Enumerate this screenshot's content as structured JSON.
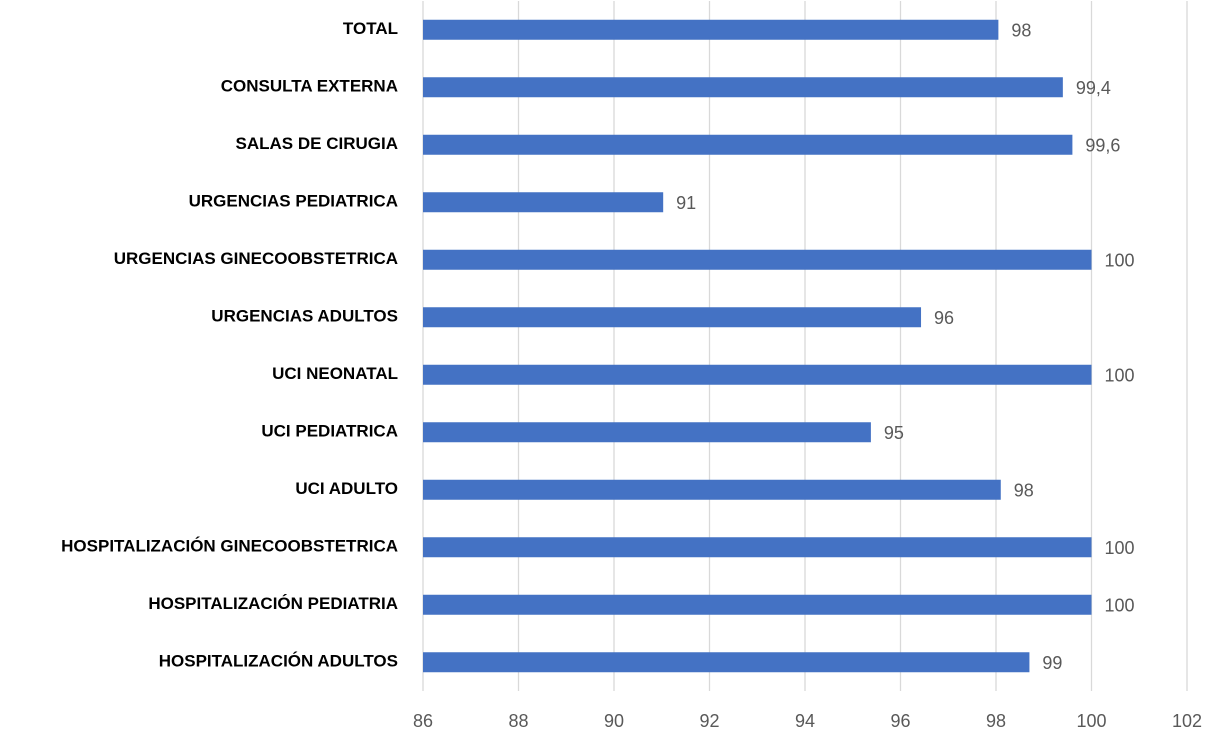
{
  "chart_data": {
    "type": "hbar",
    "categories": [
      "TOTAL",
      "CONSULTA EXTERNA",
      "SALAS DE CIRUGIA",
      "URGENCIAS PEDIATRICA",
      "URGENCIAS GINECOOBSTETRICA",
      "URGENCIAS ADULTOS",
      "UCI NEONATAL",
      "UCI PEDIATRICA",
      "UCI ADULTO",
      "HOSPITALIZACIÓN GINECOOBSTETRICA",
      "HOSPITALIZACIÓN PEDIATRIA",
      "HOSPITALIZACIÓN ADULTOS"
    ],
    "values": [
      98.05,
      99.4,
      99.6,
      91.03,
      100,
      96.43,
      100,
      95.38,
      98.1,
      100,
      100,
      98.7
    ],
    "value_labels": [
      "98",
      "99,4",
      "99,6",
      "91",
      "100",
      "96",
      "100",
      "95",
      "98",
      "100",
      "100",
      "99"
    ],
    "color": "#4472c4",
    "xlim": [
      86,
      102
    ],
    "xticks": [
      86,
      88,
      90,
      92,
      94,
      96,
      98,
      100,
      102
    ],
    "grid": true
  }
}
